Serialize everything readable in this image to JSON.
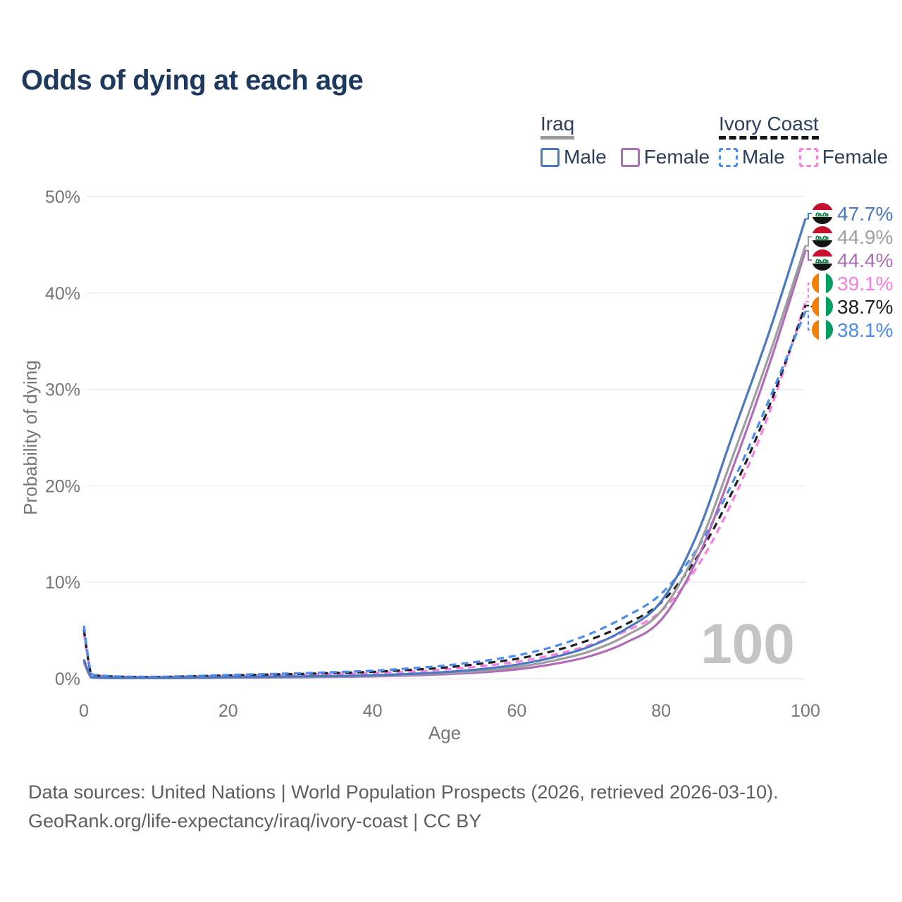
{
  "title": "Odds of dying at each age",
  "legend": {
    "groups": [
      {
        "name": "Iraq",
        "underline_style": "solid",
        "underline_color": "#9b9b9b",
        "items": [
          {
            "label": "Male",
            "color": "#4a78c2",
            "dashed": false
          },
          {
            "label": "Female",
            "color": "#b06cba",
            "dashed": false
          }
        ]
      },
      {
        "name": "Ivory Coast",
        "underline_style": "dashed",
        "underline_color": "#161616",
        "items": [
          {
            "label": "Male",
            "color": "#4a8cf2",
            "dashed": true
          },
          {
            "label": "Female",
            "color": "#fb7de2",
            "dashed": true
          }
        ]
      }
    ]
  },
  "flags": {
    "Iraq": {
      "bands": [
        "#c8102e",
        "#ffffff",
        "#141414"
      ],
      "script_color": "#007a3d",
      "orientation": "horizontal"
    },
    "Ivory Coast": {
      "bands": [
        "#f77f00",
        "#ffffff",
        "#009e60"
      ],
      "orientation": "vertical"
    }
  },
  "chart_data": {
    "type": "line",
    "title": "Odds of dying at each age",
    "xlabel": "Age",
    "ylabel": "Probability of dying",
    "xlim": [
      0,
      100
    ],
    "ylim": [
      0,
      50
    ],
    "grid": "horizontal",
    "age_cursor": "100",
    "x_ticks": [
      {
        "v": 0,
        "label": "0"
      },
      {
        "v": 20,
        "label": "20"
      },
      {
        "v": 40,
        "label": "40"
      },
      {
        "v": 60,
        "label": "60"
      },
      {
        "v": 80,
        "label": "80"
      },
      {
        "v": 100,
        "label": "100"
      }
    ],
    "y_ticks": [
      {
        "v": 0,
        "label": "0%"
      },
      {
        "v": 10,
        "label": "10%"
      },
      {
        "v": 20,
        "label": "20%"
      },
      {
        "v": 30,
        "label": "30%"
      },
      {
        "v": 40,
        "label": "40%"
      },
      {
        "v": 50,
        "label": "50%"
      }
    ],
    "ages": [
      0,
      1,
      2,
      5,
      10,
      15,
      20,
      25,
      30,
      35,
      40,
      45,
      50,
      55,
      60,
      65,
      70,
      75,
      80,
      85,
      90,
      95,
      100
    ],
    "series": [
      {
        "name": "Iraq Male",
        "country": "Iraq",
        "sex": "male",
        "color": "#4a78c2",
        "dashed": false,
        "end_label": "47.7%",
        "values": [
          2.0,
          0.16,
          0.1,
          0.07,
          0.07,
          0.1,
          0.15,
          0.19,
          0.23,
          0.28,
          0.35,
          0.48,
          0.68,
          0.98,
          1.45,
          2.2,
          3.3,
          5.1,
          8.0,
          15.0,
          25.5,
          36.0,
          47.7
        ]
      },
      {
        "name": "Iraq Both sexes",
        "country": "Iraq",
        "sex": "both",
        "color": "#9e9e9e",
        "dashed": false,
        "end_label": "44.9%",
        "values": [
          1.85,
          0.14,
          0.09,
          0.06,
          0.06,
          0.08,
          0.12,
          0.15,
          0.18,
          0.23,
          0.29,
          0.4,
          0.56,
          0.8,
          1.2,
          1.85,
          2.8,
          4.4,
          7.0,
          13.4,
          23.2,
          33.6,
          44.9
        ]
      },
      {
        "name": "Iraq Female",
        "country": "Iraq",
        "sex": "female",
        "color": "#b06cba",
        "dashed": false,
        "end_label": "44.4%",
        "values": [
          1.7,
          0.12,
          0.08,
          0.05,
          0.05,
          0.06,
          0.09,
          0.11,
          0.14,
          0.18,
          0.23,
          0.32,
          0.45,
          0.64,
          0.96,
          1.5,
          2.3,
          3.7,
          6.1,
          12.4,
          22.0,
          32.6,
          44.4
        ]
      },
      {
        "name": "Ivory Coast Female",
        "country": "Ivory Coast",
        "sex": "female",
        "color": "#fb7de2",
        "dashed": true,
        "end_label": "39.1%",
        "values": [
          4.7,
          0.45,
          0.28,
          0.18,
          0.15,
          0.2,
          0.27,
          0.34,
          0.41,
          0.5,
          0.58,
          0.72,
          0.95,
          1.28,
          1.75,
          2.45,
          3.45,
          4.9,
          7.0,
          11.6,
          18.6,
          27.6,
          39.1
        ]
      },
      {
        "name": "Ivory Coast Both sexes",
        "country": "Ivory Coast",
        "sex": "both",
        "color": "#1f1f1f",
        "dashed": true,
        "end_label": "38.7%",
        "values": [
          5.1,
          0.5,
          0.31,
          0.2,
          0.17,
          0.24,
          0.33,
          0.41,
          0.49,
          0.59,
          0.7,
          0.9,
          1.15,
          1.55,
          2.05,
          2.85,
          4.0,
          5.6,
          7.9,
          12.6,
          19.6,
          28.3,
          38.7
        ]
      },
      {
        "name": "Ivory Coast Male",
        "country": "Ivory Coast",
        "sex": "male",
        "color": "#4a8cf2",
        "dashed": true,
        "end_label": "38.1%",
        "values": [
          5.5,
          0.55,
          0.35,
          0.22,
          0.19,
          0.27,
          0.38,
          0.47,
          0.56,
          0.68,
          0.82,
          1.05,
          1.35,
          1.8,
          2.4,
          3.3,
          4.6,
          6.4,
          8.8,
          13.5,
          20.5,
          29.0,
          38.1
        ]
      }
    ]
  },
  "footer": {
    "line1": "Data sources: United Nations | World Population Prospects (2026, retrieved 2026-03-10).",
    "line2": "GeoRank.org/life-expectancy/iraq/ivory-coast | CC BY"
  }
}
